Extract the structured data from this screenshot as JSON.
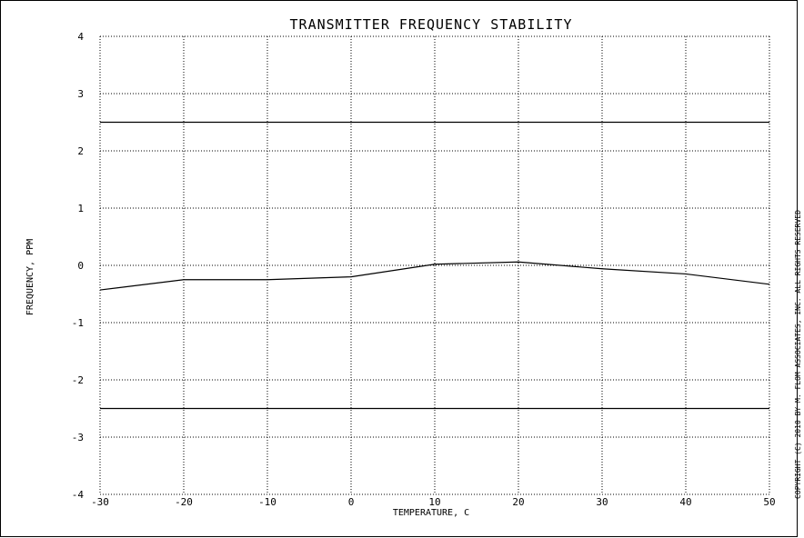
{
  "chart_data": {
    "type": "line",
    "title": "TRANSMITTER FREQUENCY STABILITY",
    "xlabel": "TEMPERATURE,  C",
    "ylabel": "FREQUENCY, PPM",
    "xlim": [
      -30,
      50
    ],
    "ylim": [
      -4,
      4
    ],
    "x_ticks": [
      "-30",
      "-20",
      "-10",
      "0",
      "10",
      "20",
      "30",
      "40",
      "50"
    ],
    "y_ticks": [
      "4",
      "3",
      "2",
      "1",
      "0",
      "-1",
      "-2",
      "-3",
      "-4"
    ],
    "grid": true,
    "series": [
      {
        "x": [
          -30,
          -20,
          -10,
          0,
          10,
          20,
          30,
          40,
          50
        ],
        "y": [
          -0.43,
          -0.25,
          -0.25,
          -0.2,
          0.02,
          0.06,
          -0.06,
          -0.15,
          -0.33
        ]
      }
    ],
    "limit_lines": [
      2.5,
      -2.5
    ],
    "side_note": "COPYRIGHT (C) 2010 BY M. FLOM ASSOCIATES, INC.  ALL RIGHTS RESERVED"
  }
}
